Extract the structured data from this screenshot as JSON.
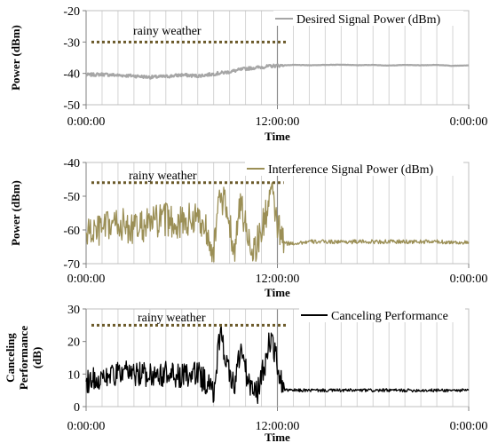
{
  "chart_data": [
    {
      "type": "line",
      "ylabel": "Power (dBm)",
      "xlabel": "Time",
      "ylim": [
        -50,
        -20
      ],
      "yticks": [
        "-20",
        "-30",
        "-40",
        "-50"
      ],
      "xticks": [
        "0:00:00",
        "12:00:00",
        "0:00:00"
      ],
      "grid": "vertical",
      "legend_position": "top-right",
      "annotation": "rainy weather",
      "series": [
        {
          "name": "Desired Signal Power (dBm)",
          "color": "#a6a6a6",
          "noise": 0.5,
          "x": [
            0,
            1,
            2,
            3,
            4,
            5,
            6,
            7,
            8,
            9,
            10,
            11,
            12,
            13,
            14,
            15,
            16,
            17,
            18,
            19,
            20,
            21,
            22,
            23,
            24
          ],
          "values": [
            -40.5,
            -40.3,
            -40.6,
            -40.8,
            -41.2,
            -41.0,
            -40.5,
            -40.8,
            -40.2,
            -39.5,
            -38.5,
            -38.0,
            -37.5,
            -37.3,
            -37.4,
            -37.3,
            -37.2,
            -37.4,
            -37.3,
            -37.5,
            -37.3,
            -37.4,
            -37.3,
            -37.6,
            -37.4
          ]
        }
      ],
      "rainy_weather": {
        "start": 0,
        "end": 12.6,
        "level": -30
      }
    },
    {
      "type": "line",
      "ylabel": "Power (dBm)",
      "xlabel": "Time",
      "ylim": [
        -70,
        -40
      ],
      "yticks": [
        "-40",
        "-50",
        "-60",
        "-70"
      ],
      "xticks": [
        "0:00:00",
        "12:00:00",
        "0:00:00"
      ],
      "grid": "vertical",
      "legend_position": "top-right",
      "annotation": "rainy weather",
      "series": [
        {
          "name": "Interference Signal Power (dBm)",
          "color": "#9b8f56",
          "noise": 5,
          "x": [
            0,
            1,
            2,
            3,
            4,
            5,
            6,
            7,
            7.6,
            8.0,
            8.4,
            8.9,
            9.3,
            9.7,
            10.1,
            10.5,
            10.8,
            11.2,
            11.6,
            11.9,
            12.2,
            12.5,
            13,
            14,
            16,
            18,
            20,
            22,
            24
          ],
          "values": [
            -61,
            -60,
            -58,
            -60,
            -58,
            -57,
            -58,
            -56,
            -60,
            -66,
            -50,
            -55,
            -66,
            -52,
            -61,
            -66,
            -63,
            -57,
            -48,
            -56,
            -62,
            -64,
            -64,
            -63.5,
            -63.5,
            -63.5,
            -63.5,
            -63.5,
            -63.8
          ]
        }
      ],
      "rainy_weather": {
        "start": 0,
        "end": 12.4,
        "level": -46
      }
    },
    {
      "type": "line",
      "ylabel": "Canceling Performance (dB)",
      "xlabel": "Time",
      "ylim": [
        0,
        30
      ],
      "yticks": [
        "30",
        "20",
        "10",
        "0"
      ],
      "xticks": [
        "0:00:00",
        "12:00:00",
        "0:00:00"
      ],
      "grid": "vertical",
      "legend_position": "top-right",
      "annotation": "rainy weather",
      "series": [
        {
          "name": "Canceling Performance",
          "color": "#000000",
          "noise": 4,
          "x": [
            0,
            1,
            2,
            3,
            4,
            5,
            6,
            7,
            7.6,
            8.0,
            8.4,
            8.9,
            9.3,
            9.7,
            10.1,
            10.5,
            10.8,
            11.2,
            11.6,
            11.9,
            12.2,
            12.5,
            13,
            14,
            16,
            18,
            20,
            22,
            24
          ],
          "values": [
            8,
            9,
            10,
            10,
            10,
            10,
            9,
            10,
            7,
            4,
            23,
            12,
            6,
            18,
            9,
            4,
            5,
            13,
            22,
            15,
            8,
            5,
            5,
            5,
            5,
            5,
            5,
            5,
            5
          ]
        }
      ],
      "rainy_weather": {
        "start": 0,
        "end": 12.6,
        "level": 25
      }
    }
  ]
}
